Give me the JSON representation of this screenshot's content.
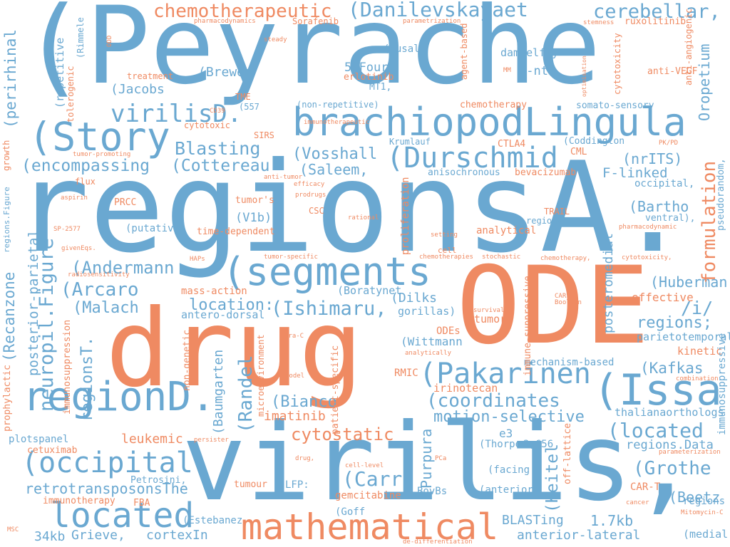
{
  "colors": {
    "blue": "#6aa8d1",
    "orange": "#ef8a62"
  },
  "words": [
    {
      "text": "(Peyrache",
      "color": "blue"
    },
    {
      "text": "regionsA.",
      "color": "blue"
    },
    {
      "text": "virilis,",
      "color": "blue"
    },
    {
      "text": "drug",
      "color": "orange"
    },
    {
      "text": "ODE",
      "color": "orange"
    },
    {
      "text": "brachiopodLingula",
      "color": "blue"
    },
    {
      "text": "(Story",
      "color": "blue"
    },
    {
      "text": "(segments",
      "color": "blue"
    },
    {
      "text": "(Issa",
      "color": "blue"
    },
    {
      "text": "regionD.",
      "color": "blue"
    },
    {
      "text": "mathematical",
      "color": "orange"
    },
    {
      "text": "located",
      "color": "blue"
    },
    {
      "text": "(occipital",
      "color": "blue"
    },
    {
      "text": "(Pakarinen",
      "color": "blue"
    },
    {
      "text": "(Durschmid",
      "color": "blue"
    },
    {
      "text": "(Danilevskayaet",
      "color": "blue"
    },
    {
      "text": "chemotherapeutic",
      "color": "orange"
    },
    {
      "text": "cerebellar,",
      "color": "blue"
    },
    {
      "text": "virilisD.",
      "color": "blue"
    },
    {
      "text": "Blasting",
      "color": "blue"
    },
    {
      "text": "(encompassing",
      "color": "blue"
    },
    {
      "text": "(Cottereau",
      "color": "blue"
    },
    {
      "text": "(Vosshall",
      "color": "blue"
    },
    {
      "text": "(Saleem,",
      "color": "blue"
    },
    {
      "text": "neuropil.Figure",
      "color": "blue"
    },
    {
      "text": "(Arcaro",
      "color": "blue"
    },
    {
      "text": "(Andermann",
      "color": "blue"
    },
    {
      "text": "(Malach",
      "color": "blue"
    },
    {
      "text": "(Ishimaru,",
      "color": "blue"
    },
    {
      "text": "location:",
      "color": "blue"
    },
    {
      "text": "(coordinates",
      "color": "blue"
    },
    {
      "text": "motion-selective",
      "color": "blue"
    },
    {
      "text": "cytostatic",
      "color": "orange"
    },
    {
      "text": "retrotransposonsThe",
      "color": "blue"
    },
    {
      "text": "(Randel",
      "color": "blue"
    },
    {
      "text": "(located",
      "color": "blue"
    },
    {
      "text": "(Grothe",
      "color": "blue"
    },
    {
      "text": "(Kafkas",
      "color": "blue"
    },
    {
      "text": "(Huberman",
      "color": "blue"
    },
    {
      "text": "/i/",
      "color": "blue"
    },
    {
      "text": "regions;",
      "color": "blue"
    },
    {
      "text": "formulation",
      "color": "orange"
    },
    {
      "text": "(Bartho",
      "color": "blue"
    },
    {
      "text": "(nrITS)",
      "color": "blue"
    },
    {
      "text": "F-linked",
      "color": "blue"
    },
    {
      "text": "Oropetium",
      "color": "blue"
    },
    {
      "text": "(perirhinal",
      "color": "blue"
    },
    {
      "text": "(Recanzone",
      "color": "blue"
    },
    {
      "text": "posterior-parietal",
      "color": "blue"
    },
    {
      "text": "regionsT.",
      "color": "blue"
    },
    {
      "text": "(Jacobs",
      "color": "blue"
    },
    {
      "text": "(Brewer",
      "color": "blue"
    },
    {
      "text": "5.Four",
      "color": "blue"
    },
    {
      "text": "9-nt",
      "color": "blue"
    },
    {
      "text": "MT1,",
      "color": "blue"
    },
    {
      "text": "(Musall",
      "color": "blue"
    },
    {
      "text": "damselfly",
      "color": "blue"
    },
    {
      "text": "1.7kb",
      "color": "blue"
    },
    {
      "text": "BLASTing",
      "color": "blue"
    },
    {
      "text": "anterior-lateral",
      "color": "blue"
    },
    {
      "text": "34kb",
      "color": "blue"
    },
    {
      "text": "Grieve,",
      "color": "blue"
    },
    {
      "text": "cortexIn",
      "color": "blue"
    },
    {
      "text": "(Carr",
      "color": "blue"
    },
    {
      "text": "(Keitel",
      "color": "blue"
    },
    {
      "text": "(Beetz",
      "color": "blue"
    },
    {
      "text": "(Purpura",
      "color": "blue"
    },
    {
      "text": "(Bianco",
      "color": "blue"
    },
    {
      "text": "imatinib",
      "color": "orange"
    },
    {
      "text": "leukemic",
      "color": "orange"
    },
    {
      "text": "(Baumgarten",
      "color": "blue"
    },
    {
      "text": "(V1b)",
      "color": "blue"
    },
    {
      "text": "(Dilks",
      "color": "blue"
    },
    {
      "text": "(Boratynet",
      "color": "blue"
    },
    {
      "text": "gorillas)",
      "color": "blue"
    },
    {
      "text": "(Wittmann",
      "color": "blue"
    },
    {
      "text": "antero-dorsal",
      "color": "blue"
    },
    {
      "text": "mass-action",
      "color": "orange"
    },
    {
      "text": "irinotecan",
      "color": "orange"
    },
    {
      "text": "tumor",
      "color": "orange"
    },
    {
      "text": "ODEs",
      "color": "orange"
    },
    {
      "text": "RMIC",
      "color": "orange"
    },
    {
      "text": "effective",
      "color": "orange"
    },
    {
      "text": "kinetic",
      "color": "orange"
    },
    {
      "text": "parietotemporal",
      "color": "blue"
    },
    {
      "text": "posteromedial",
      "color": "blue"
    },
    {
      "text": "regions.Data",
      "color": "blue"
    },
    {
      "text": "thalianaorthologs",
      "color": "blue"
    },
    {
      "text": "e3",
      "color": "blue"
    },
    {
      "text": "(Thorpe",
      "color": "blue"
    },
    {
      "text": "3,656",
      "color": "blue"
    },
    {
      "text": "(facing",
      "color": "blue"
    },
    {
      "text": "(anterior",
      "color": "blue"
    },
    {
      "text": "BovBs",
      "color": "blue"
    },
    {
      "text": "gemcitabine",
      "color": "orange"
    },
    {
      "text": "LFP:",
      "color": "blue"
    },
    {
      "text": "(Goff",
      "color": "blue"
    },
    {
      "text": "(Estebanez",
      "color": "blue"
    },
    {
      "text": "tumour",
      "color": "orange"
    },
    {
      "text": "FBA",
      "color": "orange"
    },
    {
      "text": "immunotherapy",
      "color": "orange"
    },
    {
      "text": "Petrosini,",
      "color": "blue"
    },
    {
      "text": "cetuximab",
      "color": "orange"
    },
    {
      "text": "plotspanel",
      "color": "blue"
    },
    {
      "text": "prophylactic",
      "color": "orange"
    },
    {
      "text": "immunosuppression",
      "color": "orange"
    },
    {
      "text": "regions",
      "color": "blue"
    },
    {
      "text": "(medial",
      "color": "blue"
    },
    {
      "text": "CAR-T",
      "color": "orange"
    },
    {
      "text": "immunosuppressive",
      "color": "blue"
    },
    {
      "text": "off-lattice",
      "color": "orange"
    },
    {
      "text": "mechanism-based",
      "color": "blue"
    },
    {
      "text": "non-genetic",
      "color": "orange"
    },
    {
      "text": "microenvironment",
      "color": "orange"
    },
    {
      "text": "patient-specific",
      "color": "orange"
    },
    {
      "text": "immune-suppressive",
      "color": "orange"
    },
    {
      "text": "proliferation",
      "color": "orange"
    },
    {
      "text": "analytical",
      "color": "orange"
    },
    {
      "text": "regionsD.",
      "color": "blue"
    },
    {
      "text": "TRAIL",
      "color": "orange"
    },
    {
      "text": "time-dependent",
      "color": "orange"
    },
    {
      "text": "(putative",
      "color": "blue"
    },
    {
      "text": "PRCC",
      "color": "orange"
    },
    {
      "text": "CSC",
      "color": "orange"
    },
    {
      "text": "tumor's",
      "color": "orange"
    },
    {
      "text": "bevacizumab",
      "color": "orange"
    },
    {
      "text": "anisochronous",
      "color": "blue"
    },
    {
      "text": "CML",
      "color": "orange"
    },
    {
      "text": "CTLA4",
      "color": "orange"
    },
    {
      "text": "Krumlauf",
      "color": "blue"
    },
    {
      "text": "(Coddington",
      "color": "blue"
    },
    {
      "text": "occipital,",
      "color": "blue"
    },
    {
      "text": "ventral),",
      "color": "blue"
    },
    {
      "text": "pseudorandom,",
      "color": "blue"
    },
    {
      "text": "anti-VEGF",
      "color": "orange"
    },
    {
      "text": "anti-angiogenic",
      "color": "orange"
    },
    {
      "text": "ruxolitinib",
      "color": "orange"
    },
    {
      "text": "somato-sensory",
      "color": "blue"
    },
    {
      "text": "cytotoxicity",
      "color": "orange"
    },
    {
      "text": "chemotherapy",
      "color": "orange"
    },
    {
      "text": "erlotinib",
      "color": "orange"
    },
    {
      "text": "(non-repetitive)",
      "color": "blue"
    },
    {
      "text": "(557",
      "color": "blue"
    },
    {
      "text": "TME",
      "color": "orange"
    },
    {
      "text": "treatment",
      "color": "orange"
    },
    {
      "text": "tolerogenic",
      "color": "orange"
    },
    {
      "text": "(Rimmele",
      "color": "blue"
    },
    {
      "text": "(repetitive",
      "color": "blue"
    },
    {
      "text": "cytotoxic",
      "color": "orange"
    },
    {
      "text": "SIRS",
      "color": "orange"
    },
    {
      "text": "Sorafenib",
      "color": "orange"
    },
    {
      "text": "agent-based",
      "color": "orange"
    },
    {
      "text": "growth",
      "color": "orange"
    },
    {
      "text": "flux",
      "color": "orange"
    },
    {
      "text": "regions.Figure",
      "color": "blue"
    },
    {
      "text": "pharmacodynamics",
      "color": "orange"
    },
    {
      "text": "steady",
      "color": "orange"
    },
    {
      "text": "parametrization",
      "color": "orange"
    },
    {
      "text": "stemness",
      "color": "orange"
    },
    {
      "text": "ODD",
      "color": "orange"
    },
    {
      "text": "MM",
      "color": "orange"
    },
    {
      "text": "optimisation",
      "color": "orange"
    },
    {
      "text": "CD39",
      "color": "orange"
    },
    {
      "text": "immunotherapeutic",
      "color": "orange"
    },
    {
      "text": "PK/PD",
      "color": "orange"
    },
    {
      "text": "tumor-promoting",
      "color": "orange"
    },
    {
      "text": "anti-tumor",
      "color": "orange"
    },
    {
      "text": "efficacy",
      "color": "orange"
    },
    {
      "text": "prodrugs",
      "color": "orange"
    },
    {
      "text": "aspirin",
      "color": "orange"
    },
    {
      "text": "rational",
      "color": "orange"
    },
    {
      "text": "SP-2577",
      "color": "orange"
    },
    {
      "text": "setting",
      "color": "orange"
    },
    {
      "text": "pharmacodynamic",
      "color": "orange"
    },
    {
      "text": "givenEqs.",
      "color": "orange"
    },
    {
      "text": "cell",
      "color": "orange"
    },
    {
      "text": "HAPs",
      "color": "orange"
    },
    {
      "text": "tumor-specific",
      "color": "orange"
    },
    {
      "text": "chemotherapies",
      "color": "orange"
    },
    {
      "text": "stochastic",
      "color": "orange"
    },
    {
      "text": "chemotherapy,",
      "color": "orange"
    },
    {
      "text": "cytotoxicity,",
      "color": "orange"
    },
    {
      "text": "radiosensitivity",
      "color": "orange"
    },
    {
      "text": "CAR",
      "color": "orange"
    },
    {
      "text": "Boolean",
      "color": "orange"
    },
    {
      "text": "survival",
      "color": "orange"
    },
    {
      "text": "Ara-C",
      "color": "orange"
    },
    {
      "text": "analytically",
      "color": "orange"
    },
    {
      "text": "model",
      "color": "orange"
    },
    {
      "text": "combination",
      "color": "orange"
    },
    {
      "text": "persister",
      "color": "orange"
    },
    {
      "text": "PCa",
      "color": "orange"
    },
    {
      "text": "drug,",
      "color": "orange"
    },
    {
      "text": "parameterization",
      "color": "orange"
    },
    {
      "text": "cell-level",
      "color": "orange"
    },
    {
      "text": "cancer",
      "color": "orange"
    },
    {
      "text": "Mitomycin-C",
      "color": "orange"
    },
    {
      "text": "MSC",
      "color": "orange"
    },
    {
      "text": "de-differentiation",
      "color": "orange"
    }
  ]
}
